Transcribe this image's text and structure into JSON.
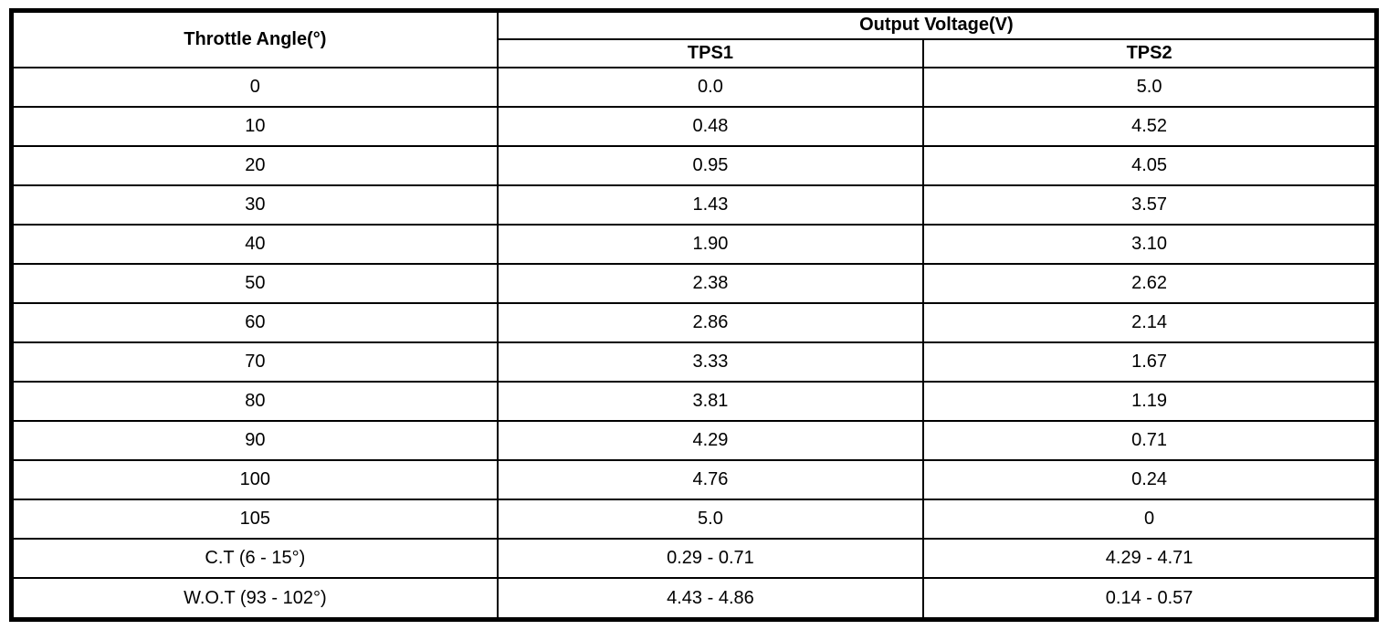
{
  "table": {
    "header": {
      "angle_label": "Throttle Angle(°)",
      "voltage_group_label": "Output Voltage(V)",
      "tps1_label": "TPS1",
      "tps2_label": "TPS2"
    },
    "rows": [
      {
        "angle": "0",
        "tps1": "0.0",
        "tps2": "5.0"
      },
      {
        "angle": "10",
        "tps1": "0.48",
        "tps2": "4.52"
      },
      {
        "angle": "20",
        "tps1": "0.95",
        "tps2": "4.05"
      },
      {
        "angle": "30",
        "tps1": "1.43",
        "tps2": "3.57"
      },
      {
        "angle": "40",
        "tps1": "1.90",
        "tps2": "3.10"
      },
      {
        "angle": "50",
        "tps1": "2.38",
        "tps2": "2.62"
      },
      {
        "angle": "60",
        "tps1": "2.86",
        "tps2": "2.14"
      },
      {
        "angle": "70",
        "tps1": "3.33",
        "tps2": "1.67"
      },
      {
        "angle": "80",
        "tps1": "3.81",
        "tps2": "1.19"
      },
      {
        "angle": "90",
        "tps1": "4.29",
        "tps2": "0.71"
      },
      {
        "angle": "100",
        "tps1": "4.76",
        "tps2": "0.24"
      },
      {
        "angle": "105",
        "tps1": "5.0",
        "tps2": "0"
      },
      {
        "angle": "C.T (6 - 15°)",
        "tps1": "0.29 - 0.71",
        "tps2": "4.29 - 4.71"
      },
      {
        "angle": "W.O.T (93 - 102°)",
        "tps1": "4.43 - 4.86",
        "tps2": "0.14 - 0.57"
      }
    ],
    "colors": {
      "border": "#000000",
      "background": "#ffffff",
      "text": "#000000"
    }
  }
}
